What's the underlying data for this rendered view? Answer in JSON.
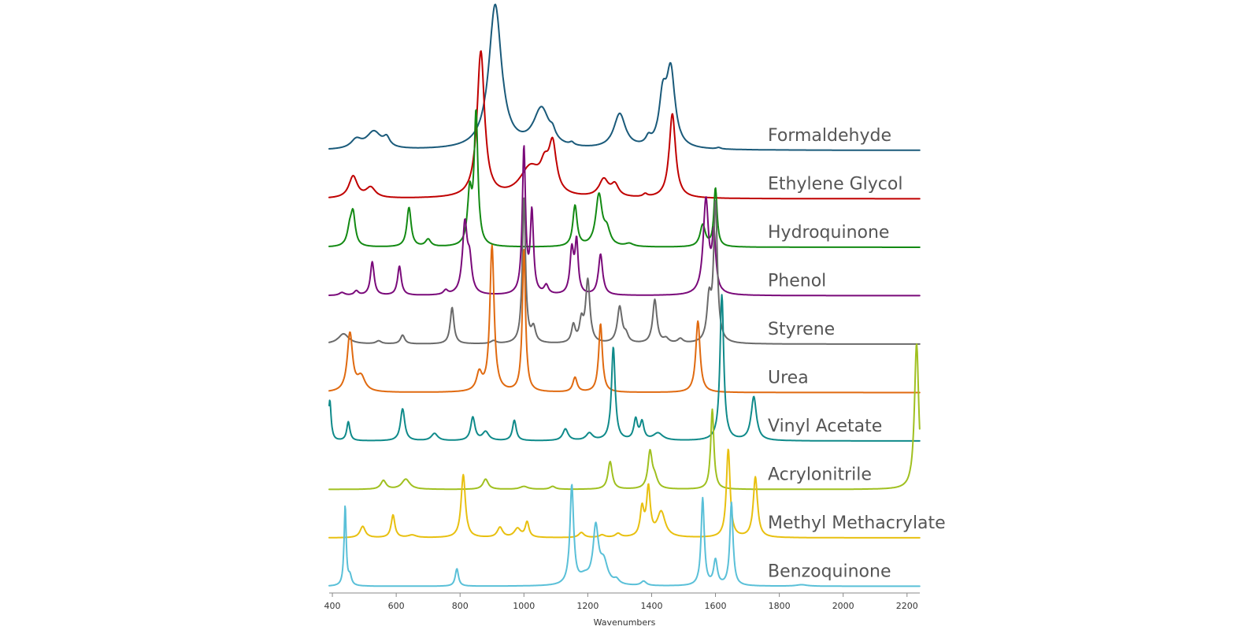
{
  "chart_data": {
    "type": "line",
    "title": "",
    "xlabel": "Wavenumbers",
    "ylabel": "",
    "xlim": [
      390,
      2240
    ],
    "x_ticks": [
      400,
      600,
      800,
      1000,
      1200,
      1400,
      1600,
      1800,
      2000,
      2200
    ],
    "grid": false,
    "legend": "inline-right",
    "series": [
      {
        "name": "Formaldehyde",
        "color": "#1a5a7a",
        "peaks": [
          [
            475,
            0.06,
            20
          ],
          [
            530,
            0.12,
            28
          ],
          [
            570,
            0.06,
            12
          ],
          [
            910,
            1.0,
            24
          ],
          [
            1055,
            0.27,
            30
          ],
          [
            1090,
            0.05,
            10
          ],
          [
            1150,
            0.02,
            8
          ],
          [
            1300,
            0.24,
            22
          ],
          [
            1390,
            0.05,
            10
          ],
          [
            1435,
            0.32,
            14
          ],
          [
            1460,
            0.52,
            16
          ],
          [
            1610,
            0.01,
            8
          ]
        ]
      },
      {
        "name": "Ethylene Glycol",
        "color": "#c00000",
        "peaks": [
          [
            465,
            0.15,
            16
          ],
          [
            520,
            0.07,
            18
          ],
          [
            865,
            1.0,
            14
          ],
          [
            1020,
            0.2,
            40
          ],
          [
            1065,
            0.15,
            16
          ],
          [
            1090,
            0.32,
            14
          ],
          [
            1250,
            0.12,
            18
          ],
          [
            1285,
            0.08,
            14
          ],
          [
            1380,
            0.02,
            8
          ],
          [
            1465,
            0.58,
            12
          ]
        ]
      },
      {
        "name": "Hydroquinone",
        "color": "#138a13",
        "peaks": [
          [
            455,
            0.12,
            10
          ],
          [
            465,
            0.2,
            8
          ],
          [
            640,
            0.27,
            8
          ],
          [
            700,
            0.05,
            10
          ],
          [
            830,
            0.35,
            8
          ],
          [
            850,
            0.9,
            7
          ],
          [
            1160,
            0.28,
            8
          ],
          [
            1235,
            0.35,
            12
          ],
          [
            1260,
            0.1,
            12
          ],
          [
            1330,
            0.02,
            15
          ],
          [
            1560,
            0.15,
            10
          ],
          [
            1600,
            0.4,
            6
          ]
        ]
      },
      {
        "name": "Phenol",
        "color": "#7a0a7a",
        "peaks": [
          [
            430,
            0.02,
            10
          ],
          [
            475,
            0.03,
            8
          ],
          [
            525,
            0.23,
            7
          ],
          [
            610,
            0.2,
            7
          ],
          [
            755,
            0.03,
            8
          ],
          [
            815,
            0.48,
            9
          ],
          [
            830,
            0.2,
            8
          ],
          [
            1000,
            1.0,
            6
          ],
          [
            1025,
            0.55,
            6
          ],
          [
            1070,
            0.06,
            8
          ],
          [
            1150,
            0.3,
            7
          ],
          [
            1165,
            0.35,
            6
          ],
          [
            1240,
            0.28,
            8
          ],
          [
            1570,
            0.65,
            10
          ],
          [
            1595,
            0.38,
            7
          ]
        ]
      },
      {
        "name": "Styrene",
        "color": "#6a6a6a",
        "peaks": [
          [
            435,
            0.07,
            20
          ],
          [
            545,
            0.02,
            10
          ],
          [
            620,
            0.06,
            8
          ],
          [
            775,
            0.25,
            7
          ],
          [
            905,
            0.02,
            10
          ],
          [
            1000,
            1.0,
            6
          ],
          [
            1030,
            0.1,
            8
          ],
          [
            1155,
            0.12,
            7
          ],
          [
            1180,
            0.14,
            7
          ],
          [
            1200,
            0.43,
            8
          ],
          [
            1300,
            0.25,
            9
          ],
          [
            1320,
            0.05,
            8
          ],
          [
            1410,
            0.3,
            8
          ],
          [
            1445,
            0.03,
            10
          ],
          [
            1490,
            0.03,
            10
          ],
          [
            1580,
            0.28,
            8
          ],
          [
            1600,
            0.95,
            7
          ]
        ]
      },
      {
        "name": "Urea",
        "color": "#e06a10",
        "peaks": [
          [
            455,
            0.4,
            10
          ],
          [
            490,
            0.1,
            15
          ],
          [
            860,
            0.12,
            10
          ],
          [
            900,
            1.0,
            8
          ],
          [
            1000,
            0.98,
            6
          ],
          [
            1160,
            0.1,
            8
          ],
          [
            1240,
            0.47,
            7
          ],
          [
            1545,
            0.49,
            8
          ]
        ]
      },
      {
        "name": "Vinyl Acetate",
        "color": "#0f8a8a",
        "peaks": [
          [
            392,
            0.28,
            5
          ],
          [
            450,
            0.13,
            6
          ],
          [
            620,
            0.22,
            8
          ],
          [
            720,
            0.05,
            12
          ],
          [
            840,
            0.16,
            8
          ],
          [
            880,
            0.06,
            12
          ],
          [
            970,
            0.14,
            7
          ],
          [
            1130,
            0.08,
            10
          ],
          [
            1205,
            0.05,
            12
          ],
          [
            1280,
            0.64,
            7
          ],
          [
            1350,
            0.14,
            7
          ],
          [
            1370,
            0.12,
            7
          ],
          [
            1420,
            0.05,
            18
          ],
          [
            1620,
            1.0,
            7
          ],
          [
            1720,
            0.3,
            10
          ]
        ]
      },
      {
        "name": "Acrylonitrile",
        "color": "#a0c020",
        "peaks": [
          [
            560,
            0.06,
            10
          ],
          [
            630,
            0.07,
            15
          ],
          [
            880,
            0.07,
            10
          ],
          [
            1000,
            0.02,
            15
          ],
          [
            1090,
            0.02,
            10
          ],
          [
            1270,
            0.19,
            8
          ],
          [
            1395,
            0.25,
            8
          ],
          [
            1410,
            0.07,
            10
          ],
          [
            1590,
            0.55,
            6
          ],
          [
            2230,
            1.0,
            8
          ],
          [
            2300,
            0.02,
            10
          ]
        ]
      },
      {
        "name": "Methyl Methacrylate",
        "color": "#e8c010",
        "peaks": [
          [
            495,
            0.09,
            10
          ],
          [
            590,
            0.18,
            7
          ],
          [
            650,
            0.02,
            15
          ],
          [
            810,
            0.5,
            8
          ],
          [
            925,
            0.08,
            10
          ],
          [
            980,
            0.07,
            12
          ],
          [
            1010,
            0.12,
            7
          ],
          [
            1180,
            0.04,
            10
          ],
          [
            1245,
            0.02,
            10
          ],
          [
            1295,
            0.03,
            10
          ],
          [
            1370,
            0.22,
            7
          ],
          [
            1390,
            0.38,
            7
          ],
          [
            1430,
            0.2,
            15
          ],
          [
            1640,
            0.7,
            7
          ],
          [
            1725,
            0.48,
            8
          ]
        ]
      },
      {
        "name": "Benzoquinone",
        "color": "#5ac0d8",
        "peaks": [
          [
            440,
            0.55,
            4
          ],
          [
            455,
            0.06,
            6
          ],
          [
            790,
            0.12,
            6
          ],
          [
            1150,
            0.68,
            7
          ],
          [
            1190,
            0.05,
            20
          ],
          [
            1225,
            0.38,
            10
          ],
          [
            1250,
            0.15,
            15
          ],
          [
            1290,
            0.03,
            10
          ],
          [
            1375,
            0.03,
            10
          ],
          [
            1560,
            0.6,
            6
          ],
          [
            1600,
            0.17,
            7
          ],
          [
            1650,
            0.57,
            6
          ],
          [
            1870,
            0.01,
            20
          ]
        ]
      }
    ]
  }
}
